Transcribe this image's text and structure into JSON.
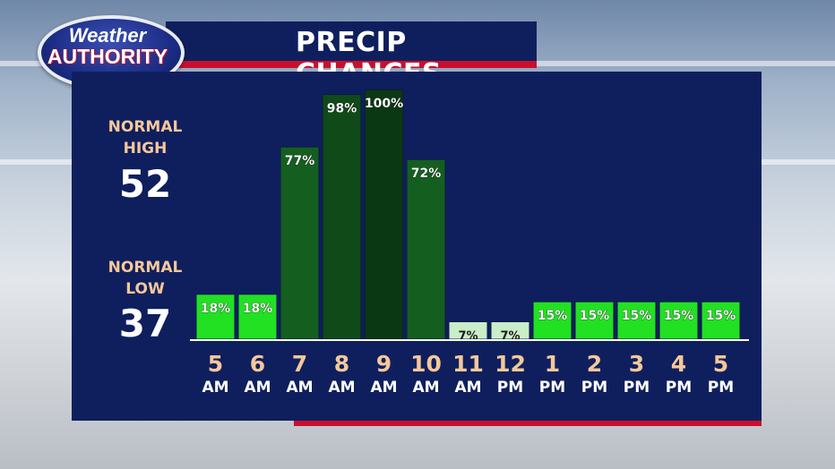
{
  "logo": {
    "line1": "Weather",
    "line2": "AUTHORITY"
  },
  "title": "PRECIP CHANCES",
  "normal_high": {
    "label_line1": "NORMAL",
    "label_line2": "HIGH",
    "value": "52"
  },
  "normal_low": {
    "label_line1": "NORMAL",
    "label_line2": "LOW",
    "value": "37"
  },
  "colors": {
    "panel": "#0f1f5e",
    "title_bar": "#0f1f5e",
    "accent_red": "#c8102e",
    "label_orange": "#f5c89a",
    "bar_bright_green": "#22e022",
    "bar_light_green": "#c9eec9",
    "bar_dark_green": "#0c4a16"
  },
  "chart_data": {
    "type": "bar",
    "categories": [
      "5 AM",
      "6 AM",
      "7 AM",
      "8 AM",
      "9 AM",
      "10 AM",
      "11 AM",
      "12 PM",
      "1 PM",
      "2 PM",
      "3 PM",
      "4 PM",
      "5 PM"
    ],
    "hour_labels": [
      "5",
      "6",
      "7",
      "8",
      "9",
      "10",
      "11",
      "12",
      "1",
      "2",
      "3",
      "4",
      "5"
    ],
    "period_labels": [
      "AM",
      "AM",
      "AM",
      "AM",
      "AM",
      "AM",
      "AM",
      "PM",
      "PM",
      "PM",
      "PM",
      "PM",
      "PM"
    ],
    "values": [
      18,
      18,
      77,
      98,
      100,
      72,
      7,
      7,
      15,
      15,
      15,
      15,
      15
    ],
    "value_labels": [
      "18%",
      "18%",
      "77%",
      "98%",
      "100%",
      "72%",
      "7%",
      "7%",
      "15%",
      "15%",
      "15%",
      "15%",
      "15%"
    ],
    "bar_colors": [
      "#22e022",
      "#22e022",
      "#145f1f",
      "#0f4a18",
      "#0a3812",
      "#145f1f",
      "#c9eec9",
      "#c9eec9",
      "#22e022",
      "#22e022",
      "#22e022",
      "#22e022",
      "#22e022"
    ],
    "ylim": [
      0,
      100
    ],
    "grid": false,
    "legend": "none"
  }
}
